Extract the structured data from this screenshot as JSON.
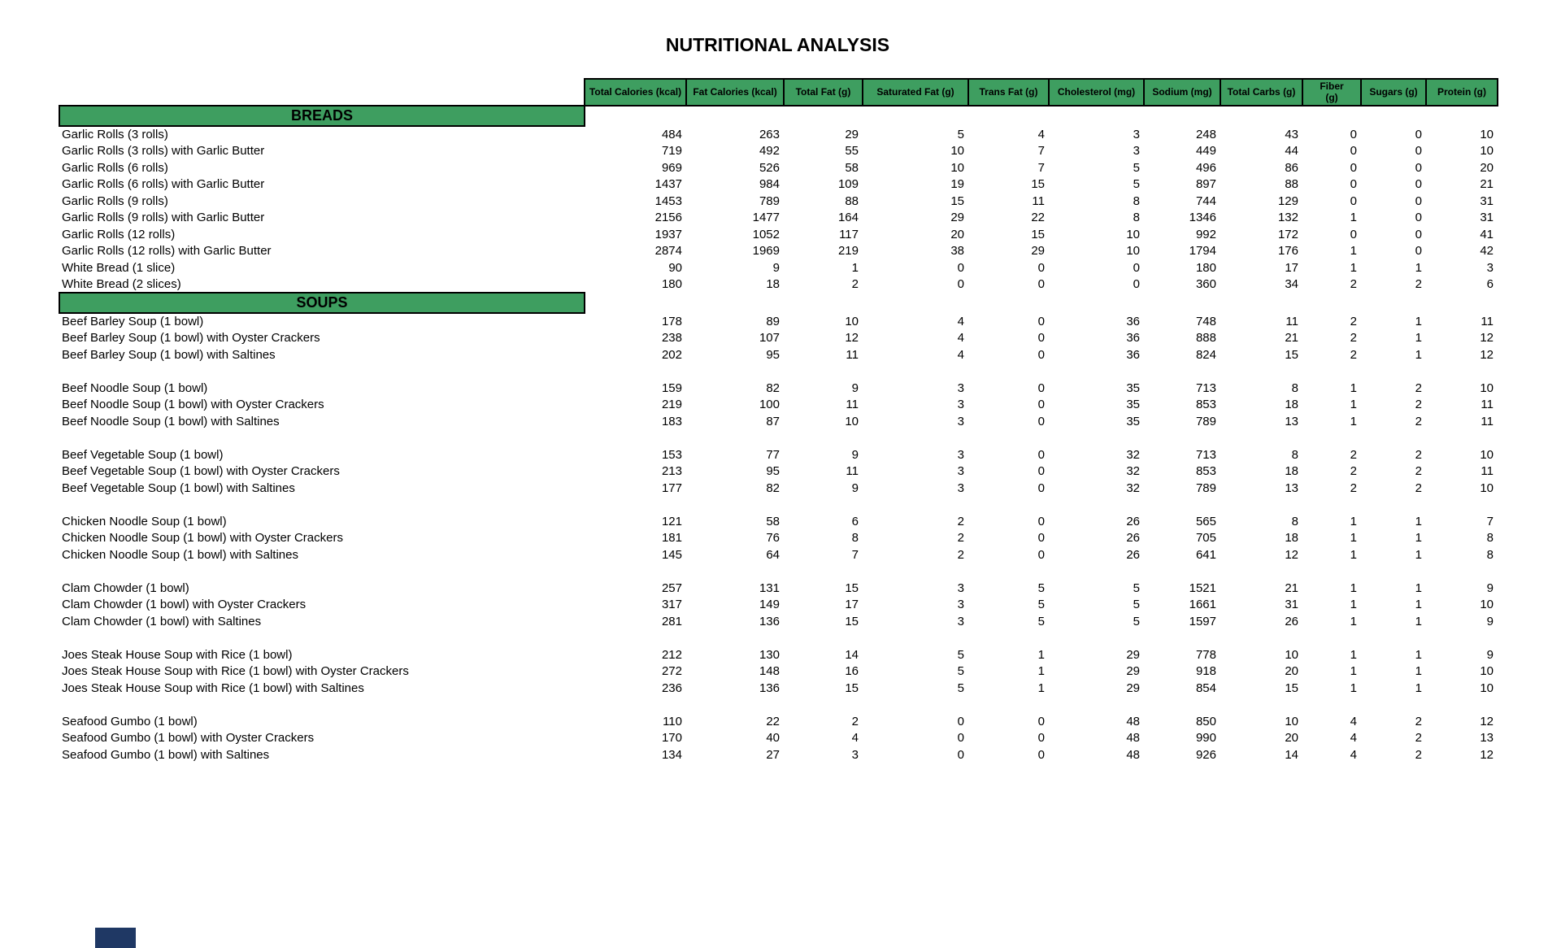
{
  "title": "NUTRITIONAL ANALYSIS",
  "colors": {
    "header_green": "#3E9E60",
    "border_black": "#000000",
    "accent_navy": "#1F3864"
  },
  "table": {
    "columns": [
      "Total Calories (kcal)",
      "Fat Calories (kcal)",
      "Total Fat (g)",
      "Saturated Fat (g)",
      "Trans Fat (g)",
      "Cholesterol (mg)",
      "Sodium (mg)",
      "Total Carbs (g)",
      "Fiber\n(g)",
      "Sugars (g)",
      "Protein (g)"
    ],
    "sections": [
      {
        "name": "BREADS",
        "rows": [
          {
            "label": "Garlic Rolls (3 rolls)",
            "values": [
              484,
              263,
              29,
              5,
              4,
              3,
              248,
              43,
              0,
              0,
              10
            ]
          },
          {
            "label": "Garlic Rolls (3 rolls) with Garlic Butter",
            "values": [
              719,
              492,
              55,
              10,
              7,
              3,
              449,
              44,
              0,
              0,
              10
            ]
          },
          {
            "label": "Garlic Rolls (6 rolls)",
            "values": [
              969,
              526,
              58,
              10,
              7,
              5,
              496,
              86,
              0,
              0,
              20
            ]
          },
          {
            "label": "Garlic Rolls (6 rolls) with Garlic Butter",
            "values": [
              1437,
              984,
              109,
              19,
              15,
              5,
              897,
              88,
              0,
              0,
              21
            ]
          },
          {
            "label": "Garlic Rolls (9 rolls)",
            "values": [
              1453,
              789,
              88,
              15,
              11,
              8,
              744,
              129,
              0,
              0,
              31
            ]
          },
          {
            "label": "Garlic Rolls (9 rolls) with Garlic Butter",
            "values": [
              2156,
              1477,
              164,
              29,
              22,
              8,
              1346,
              132,
              1,
              0,
              31
            ]
          },
          {
            "label": "Garlic Rolls (12 rolls)",
            "values": [
              1937,
              1052,
              117,
              20,
              15,
              10,
              992,
              172,
              0,
              0,
              41
            ]
          },
          {
            "label": "Garlic Rolls (12 rolls) with Garlic Butter",
            "values": [
              2874,
              1969,
              219,
              38,
              29,
              10,
              1794,
              176,
              1,
              0,
              42
            ]
          },
          {
            "label": "White Bread (1 slice)",
            "values": [
              90,
              9,
              1,
              0,
              0,
              0,
              180,
              17,
              1,
              1,
              3
            ]
          },
          {
            "label": "White Bread (2 slices)",
            "values": [
              180,
              18,
              2,
              0,
              0,
              0,
              360,
              34,
              2,
              2,
              6
            ]
          }
        ]
      },
      {
        "name": "SOUPS",
        "rows": [
          {
            "label": "Beef Barley Soup (1 bowl)",
            "values": [
              178,
              89,
              10,
              4,
              0,
              36,
              748,
              11,
              2,
              1,
              11
            ]
          },
          {
            "label": "Beef Barley Soup (1 bowl) with Oyster Crackers",
            "values": [
              238,
              107,
              12,
              4,
              0,
              36,
              888,
              21,
              2,
              1,
              12
            ]
          },
          {
            "label": "Beef Barley Soup (1 bowl) with Saltines",
            "values": [
              202,
              95,
              11,
              4,
              0,
              36,
              824,
              15,
              2,
              1,
              12
            ]
          },
          {
            "spacer": true
          },
          {
            "label": "Beef Noodle Soup (1 bowl)",
            "values": [
              159,
              82,
              9,
              3,
              0,
              35,
              713,
              8,
              1,
              2,
              10
            ]
          },
          {
            "label": "Beef Noodle Soup (1 bowl) with Oyster Crackers",
            "values": [
              219,
              100,
              11,
              3,
              0,
              35,
              853,
              18,
              1,
              2,
              11
            ]
          },
          {
            "label": "Beef Noodle Soup (1 bowl) with Saltines",
            "values": [
              183,
              87,
              10,
              3,
              0,
              35,
              789,
              13,
              1,
              2,
              11
            ]
          },
          {
            "spacer": true
          },
          {
            "label": "Beef Vegetable Soup (1 bowl)",
            "values": [
              153,
              77,
              9,
              3,
              0,
              32,
              713,
              8,
              2,
              2,
              10
            ]
          },
          {
            "label": "Beef Vegetable Soup (1 bowl) with Oyster Crackers",
            "values": [
              213,
              95,
              11,
              3,
              0,
              32,
              853,
              18,
              2,
              2,
              11
            ]
          },
          {
            "label": "Beef Vegetable Soup (1 bowl) with Saltines",
            "values": [
              177,
              82,
              9,
              3,
              0,
              32,
              789,
              13,
              2,
              2,
              10
            ]
          },
          {
            "spacer": true
          },
          {
            "label": "Chicken Noodle Soup (1 bowl)",
            "values": [
              121,
              58,
              6,
              2,
              0,
              26,
              565,
              8,
              1,
              1,
              7
            ]
          },
          {
            "label": "Chicken Noodle Soup (1 bowl) with Oyster Crackers",
            "values": [
              181,
              76,
              8,
              2,
              0,
              26,
              705,
              18,
              1,
              1,
              8
            ]
          },
          {
            "label": "Chicken Noodle Soup (1 bowl) with Saltines",
            "values": [
              145,
              64,
              7,
              2,
              0,
              26,
              641,
              12,
              1,
              1,
              8
            ]
          },
          {
            "spacer": true
          },
          {
            "label": "Clam Chowder (1 bowl)",
            "values": [
              257,
              131,
              15,
              3,
              5,
              5,
              1521,
              21,
              1,
              1,
              9
            ]
          },
          {
            "label": "Clam Chowder (1 bowl) with Oyster Crackers",
            "values": [
              317,
              149,
              17,
              3,
              5,
              5,
              1661,
              31,
              1,
              1,
              10
            ]
          },
          {
            "label": "Clam Chowder (1 bowl) with Saltines",
            "values": [
              281,
              136,
              15,
              3,
              5,
              5,
              1597,
              26,
              1,
              1,
              9
            ]
          },
          {
            "spacer": true
          },
          {
            "label": "Joes Steak House Soup with Rice (1 bowl)",
            "values": [
              212,
              130,
              14,
              5,
              1,
              29,
              778,
              10,
              1,
              1,
              9
            ]
          },
          {
            "label": "Joes Steak House Soup with Rice (1 bowl) with Oyster Crackers",
            "values": [
              272,
              148,
              16,
              5,
              1,
              29,
              918,
              20,
              1,
              1,
              10
            ]
          },
          {
            "label": "Joes Steak House Soup with Rice (1 bowl) with Saltines",
            "values": [
              236,
              136,
              15,
              5,
              1,
              29,
              854,
              15,
              1,
              1,
              10
            ]
          },
          {
            "spacer": true
          },
          {
            "label": "Seafood Gumbo (1 bowl)",
            "values": [
              110,
              22,
              2,
              0,
              0,
              48,
              850,
              10,
              4,
              2,
              12
            ]
          },
          {
            "label": "Seafood Gumbo (1 bowl) with Oyster Crackers",
            "values": [
              170,
              40,
              4,
              0,
              0,
              48,
              990,
              20,
              4,
              2,
              13
            ]
          },
          {
            "label": "Seafood Gumbo (1 bowl) with Saltines",
            "values": [
              134,
              27,
              3,
              0,
              0,
              48,
              926,
              14,
              4,
              2,
              12
            ]
          }
        ]
      }
    ]
  }
}
